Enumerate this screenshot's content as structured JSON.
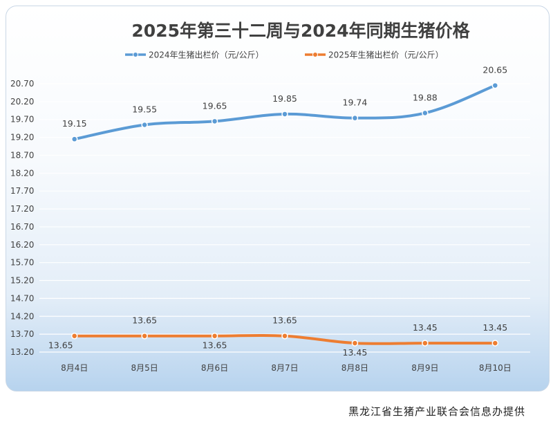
{
  "chart_data": {
    "type": "line",
    "title": "2025年第三十二周与2024年同期生猪价格",
    "categories": [
      "8月4日",
      "8月5日",
      "8月6日",
      "8月7日",
      "8月8日",
      "8月9日",
      "8月10日"
    ],
    "series": [
      {
        "name": "2024年生猪出栏价（元/公斤）",
        "color": "#5b9bd5",
        "values": [
          19.15,
          19.55,
          19.65,
          19.85,
          19.74,
          19.88,
          20.65
        ]
      },
      {
        "name": "2025年生猪出栏价（元/公斤）",
        "color": "#ed7d31",
        "values": [
          13.65,
          13.65,
          13.65,
          13.65,
          13.45,
          13.45,
          13.45
        ]
      }
    ],
    "y_ticks": [
      "13.20",
      "13.70",
      "14.20",
      "14.70",
      "15.20",
      "15.70",
      "16.20",
      "16.70",
      "17.20",
      "17.70",
      "18.20",
      "18.70",
      "19.20",
      "19.70",
      "20.20",
      "20.70"
    ],
    "ylim": [
      13.2,
      20.7
    ],
    "grid": true,
    "legend": "top",
    "smooth": true
  },
  "footer": {
    "credit": "黑龙江省生猪产业联合会信息办提供"
  }
}
